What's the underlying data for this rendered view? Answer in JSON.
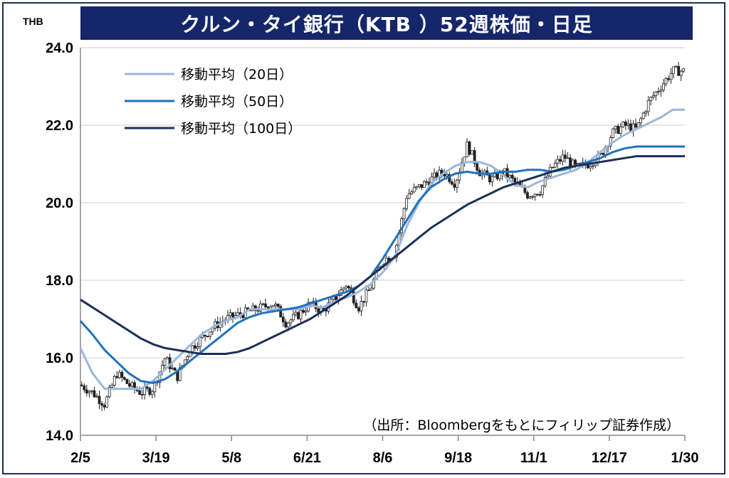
{
  "chart_data": {
    "type": "line",
    "title": "クルン・タイ銀行（KTB ）52週株価・日足",
    "unit": "THB",
    "ylim": [
      14.0,
      24.0
    ],
    "yticks": [
      "24.0",
      "22.0",
      "20.0",
      "18.0",
      "16.0",
      "14.0"
    ],
    "ytick_values": [
      24,
      22,
      20,
      18,
      16,
      14
    ],
    "xticks": [
      "2/5",
      "3/19",
      "5/8",
      "6/21",
      "8/6",
      "9/18",
      "11/1",
      "12/17",
      "1/30"
    ],
    "x_range": [
      0,
      100
    ],
    "grid": true,
    "legend_position": "top-left",
    "source": "（出所：Bloombergをもとにフィリップ証券作成）",
    "price_anchors": [
      [
        0,
        15.3
      ],
      [
        2,
        15.1
      ],
      [
        4,
        14.8
      ],
      [
        6,
        15.6
      ],
      [
        8,
        15.3
      ],
      [
        10,
        15.1
      ],
      [
        12,
        15.2
      ],
      [
        14,
        16.0
      ],
      [
        16,
        15.5
      ],
      [
        18,
        16.2
      ],
      [
        20,
        16.5
      ],
      [
        22,
        16.8
      ],
      [
        24,
        17.0
      ],
      [
        26,
        17.1
      ],
      [
        28,
        17.2
      ],
      [
        30,
        17.3
      ],
      [
        32,
        17.4
      ],
      [
        34,
        16.9
      ],
      [
        36,
        17.1
      ],
      [
        38,
        17.4
      ],
      [
        40,
        17.2
      ],
      [
        42,
        17.5
      ],
      [
        44,
        17.9
      ],
      [
        46,
        17.3
      ],
      [
        48,
        17.8
      ],
      [
        50,
        18.5
      ],
      [
        52,
        18.7
      ],
      [
        54,
        20.2
      ],
      [
        56,
        20.4
      ],
      [
        58,
        20.6
      ],
      [
        60,
        20.8
      ],
      [
        62,
        20.5
      ],
      [
        64,
        21.5
      ],
      [
        66,
        20.8
      ],
      [
        68,
        20.6
      ],
      [
        70,
        20.8
      ],
      [
        72,
        20.5
      ],
      [
        74,
        20.2
      ],
      [
        76,
        20.3
      ],
      [
        78,
        20.9
      ],
      [
        80,
        21.2
      ],
      [
        82,
        20.9
      ],
      [
        84,
        21.0
      ],
      [
        86,
        21.2
      ],
      [
        88,
        21.8
      ],
      [
        90,
        22.0
      ],
      [
        92,
        21.9
      ],
      [
        94,
        22.6
      ],
      [
        96,
        23.0
      ],
      [
        98,
        23.4
      ],
      [
        100,
        23.4
      ]
    ],
    "series": [
      {
        "name": "移動平均（20日）",
        "color": "#9db6d8",
        "points": [
          [
            0,
            16.25
          ],
          [
            2,
            15.6
          ],
          [
            4,
            15.2
          ],
          [
            8,
            15.2
          ],
          [
            10,
            15.2
          ],
          [
            12,
            15.4
          ],
          [
            14,
            15.7
          ],
          [
            16,
            16.0
          ],
          [
            18,
            16.3
          ],
          [
            20,
            16.6
          ],
          [
            22,
            16.8
          ],
          [
            24,
            16.95
          ],
          [
            26,
            17.05
          ],
          [
            28,
            17.25
          ],
          [
            30,
            17.25
          ],
          [
            32,
            17.25
          ],
          [
            34,
            17.25
          ],
          [
            36,
            17.25
          ],
          [
            38,
            17.35
          ],
          [
            40,
            17.3
          ],
          [
            42,
            17.45
          ],
          [
            44,
            17.55
          ],
          [
            46,
            17.7
          ],
          [
            48,
            17.9
          ],
          [
            50,
            18.2
          ],
          [
            52,
            18.6
          ],
          [
            54,
            19.4
          ],
          [
            56,
            20.0
          ],
          [
            58,
            20.5
          ],
          [
            60,
            20.75
          ],
          [
            62,
            20.95
          ],
          [
            64,
            21.05
          ],
          [
            66,
            21.05
          ],
          [
            68,
            20.95
          ],
          [
            70,
            20.7
          ],
          [
            72,
            20.45
          ],
          [
            74,
            20.4
          ],
          [
            76,
            20.55
          ],
          [
            78,
            20.65
          ],
          [
            80,
            20.75
          ],
          [
            82,
            20.85
          ],
          [
            84,
            21.05
          ],
          [
            86,
            21.3
          ],
          [
            88,
            21.55
          ],
          [
            90,
            21.75
          ],
          [
            92,
            21.9
          ],
          [
            94,
            22.05
          ],
          [
            96,
            22.2
          ],
          [
            98,
            22.4
          ],
          [
            100,
            22.4
          ]
        ]
      },
      {
        "name": "移動平均（50日）",
        "color": "#1f72c0",
        "points": [
          [
            0,
            16.95
          ],
          [
            2,
            16.6
          ],
          [
            4,
            16.2
          ],
          [
            6,
            15.9
          ],
          [
            8,
            15.6
          ],
          [
            10,
            15.4
          ],
          [
            12,
            15.35
          ],
          [
            14,
            15.45
          ],
          [
            16,
            15.65
          ],
          [
            18,
            15.9
          ],
          [
            20,
            16.15
          ],
          [
            22,
            16.4
          ],
          [
            24,
            16.65
          ],
          [
            26,
            16.9
          ],
          [
            28,
            17.05
          ],
          [
            30,
            17.15
          ],
          [
            32,
            17.2
          ],
          [
            34,
            17.25
          ],
          [
            36,
            17.3
          ],
          [
            38,
            17.4
          ],
          [
            40,
            17.5
          ],
          [
            42,
            17.6
          ],
          [
            44,
            17.7
          ],
          [
            46,
            17.85
          ],
          [
            48,
            18.1
          ],
          [
            50,
            18.55
          ],
          [
            52,
            19.05
          ],
          [
            54,
            19.55
          ],
          [
            56,
            20.05
          ],
          [
            58,
            20.4
          ],
          [
            60,
            20.6
          ],
          [
            62,
            20.75
          ],
          [
            64,
            20.8
          ],
          [
            66,
            20.75
          ],
          [
            68,
            20.75
          ],
          [
            70,
            20.8
          ],
          [
            72,
            20.8
          ],
          [
            74,
            20.85
          ],
          [
            76,
            20.85
          ],
          [
            78,
            20.8
          ],
          [
            80,
            20.85
          ],
          [
            82,
            20.95
          ],
          [
            84,
            21.05
          ],
          [
            86,
            21.15
          ],
          [
            88,
            21.3
          ],
          [
            90,
            21.4
          ],
          [
            92,
            21.45
          ],
          [
            94,
            21.45
          ],
          [
            96,
            21.45
          ],
          [
            98,
            21.45
          ],
          [
            100,
            21.45
          ]
        ]
      },
      {
        "name": "移動平均（100日）",
        "color": "#1b2f57",
        "points": [
          [
            0,
            17.5
          ],
          [
            2,
            17.3
          ],
          [
            4,
            17.1
          ],
          [
            6,
            16.9
          ],
          [
            8,
            16.7
          ],
          [
            10,
            16.5
          ],
          [
            12,
            16.35
          ],
          [
            14,
            16.25
          ],
          [
            16,
            16.2
          ],
          [
            18,
            16.15
          ],
          [
            20,
            16.1
          ],
          [
            22,
            16.1
          ],
          [
            24,
            16.1
          ],
          [
            26,
            16.15
          ],
          [
            28,
            16.25
          ],
          [
            30,
            16.4
          ],
          [
            32,
            16.55
          ],
          [
            34,
            16.7
          ],
          [
            36,
            16.85
          ],
          [
            38,
            17.0
          ],
          [
            40,
            17.2
          ],
          [
            42,
            17.4
          ],
          [
            44,
            17.6
          ],
          [
            46,
            17.85
          ],
          [
            48,
            18.1
          ],
          [
            50,
            18.35
          ],
          [
            52,
            18.6
          ],
          [
            54,
            18.85
          ],
          [
            56,
            19.1
          ],
          [
            58,
            19.35
          ],
          [
            60,
            19.55
          ],
          [
            62,
            19.75
          ],
          [
            64,
            19.95
          ],
          [
            66,
            20.1
          ],
          [
            68,
            20.25
          ],
          [
            70,
            20.4
          ],
          [
            72,
            20.5
          ],
          [
            74,
            20.6
          ],
          [
            76,
            20.7
          ],
          [
            78,
            20.8
          ],
          [
            80,
            20.9
          ],
          [
            82,
            20.95
          ],
          [
            84,
            21.0
          ],
          [
            86,
            21.05
          ],
          [
            88,
            21.1
          ],
          [
            90,
            21.15
          ],
          [
            92,
            21.2
          ],
          [
            94,
            21.2
          ],
          [
            96,
            21.2
          ],
          [
            98,
            21.2
          ],
          [
            100,
            21.2
          ]
        ]
      }
    ]
  }
}
